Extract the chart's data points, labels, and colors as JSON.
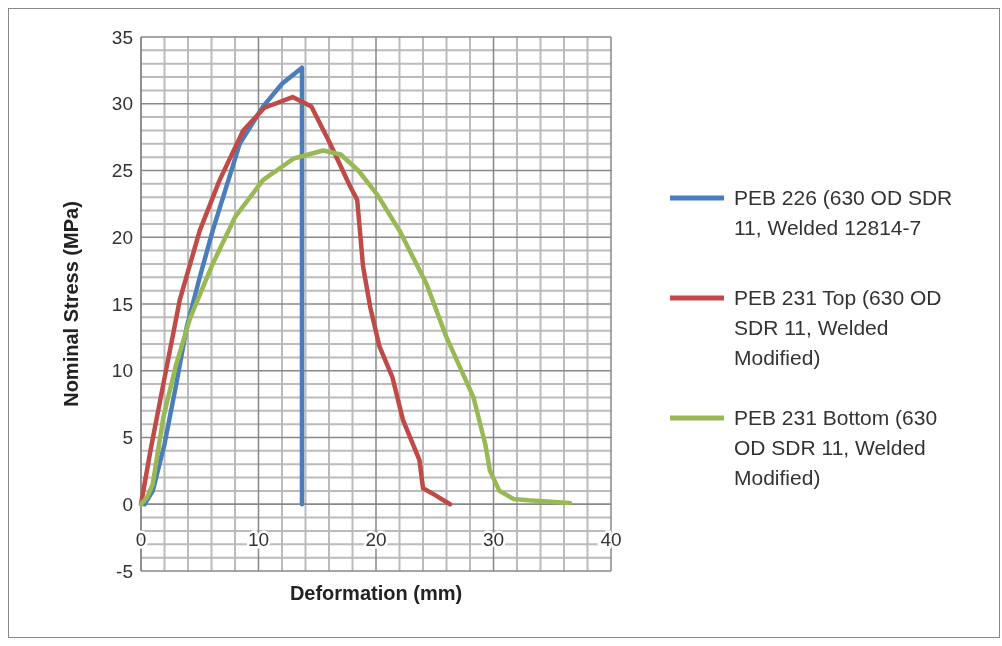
{
  "chart_data": {
    "type": "line",
    "xlabel": "Deformation (mm)",
    "ylabel": "Nominal Stress (MPa)",
    "xlim": [
      0,
      40
    ],
    "xticks": [
      0,
      10,
      20,
      30,
      40
    ],
    "ylim": [
      -5,
      35
    ],
    "yticks": [
      -5,
      0,
      5,
      10,
      15,
      20,
      25,
      30,
      35
    ],
    "grid": true,
    "legend": "right",
    "line_style": "solid",
    "series": [
      {
        "name": "PEB 226 (630 OD SDR 11, Welded 12814-7",
        "color": "#4a7ebb",
        "x": [
          0.3,
          1,
          2,
          3,
          3.9,
          5,
          6.1,
          7.2,
          8.4,
          10.4,
          12,
          13.7,
          13.7
        ],
        "values": [
          0,
          1,
          4.5,
          9,
          13.3,
          17,
          20.5,
          23.6,
          27,
          29.8,
          31.5,
          32.7,
          0
        ]
      },
      {
        "name": "PEB 231 Top (630 OD SDR 11, Welded Modified)",
        "color": "#be4b48",
        "x": [
          0,
          0.8,
          1.9,
          3.3,
          5,
          6.7,
          8.7,
          10.5,
          12.9,
          14.5,
          16.1,
          17.8,
          18.4,
          18.9,
          19.5,
          20.3,
          21.4,
          22.3,
          23.7,
          24,
          25,
          26.3
        ],
        "values": [
          0,
          4,
          9,
          15.3,
          20.5,
          24.3,
          28,
          29.7,
          30.5,
          29.8,
          27,
          23.8,
          22.8,
          17.8,
          14.8,
          11.8,
          9.5,
          6.3,
          3.3,
          1.2,
          0.7,
          0
        ]
      },
      {
        "name": "PEB 231 Bottom (630 OD SDR 11, Welded Modified)",
        "color": "#98b954",
        "x": [
          0,
          0.5,
          1,
          1.9,
          3,
          4.2,
          6.1,
          8,
          10.4,
          13,
          15.5,
          17,
          18.5,
          20.1,
          22,
          24.3,
          26,
          28.3,
          29.3,
          29.7,
          30.5,
          31.7,
          33,
          36.5
        ],
        "values": [
          0,
          0.5,
          1.5,
          6.5,
          10.5,
          14,
          18,
          21.5,
          24.3,
          25.9,
          26.5,
          26.2,
          25,
          23.2,
          20.5,
          16.5,
          12.5,
          8,
          4.5,
          2.5,
          1,
          0.4,
          0.3,
          0.1
        ]
      }
    ]
  }
}
